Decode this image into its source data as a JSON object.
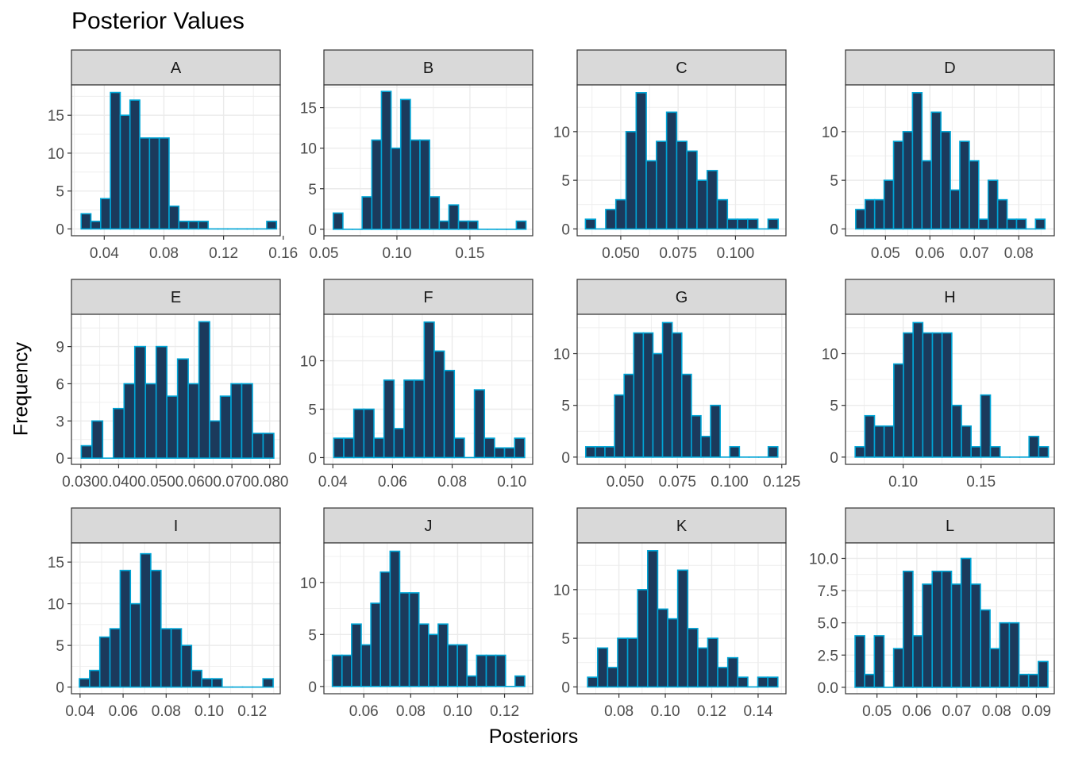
{
  "title": "Posterior Values",
  "xlabel": "Posteriors",
  "ylabel": "Frequency",
  "colors": {
    "bar_fill": "#1b3a5c",
    "bar_stroke": "#00a5d6",
    "strip_fill": "#d9d9d9",
    "panel_border": "#333333",
    "grid": "#ebebeb"
  },
  "chart_data": [
    {
      "type": "bar",
      "panel": "A",
      "xlim": [
        0.018,
        0.158
      ],
      "ylim": [
        -0.9,
        19
      ],
      "xticks": [
        0.04,
        0.08,
        0.12,
        0.16
      ],
      "xtick_labels": [
        "0.04",
        "0.08",
        "0.12",
        "0.16"
      ],
      "yticks": [
        0,
        5,
        10,
        15
      ],
      "ytick_labels": [
        "0",
        "5",
        "10",
        "15"
      ],
      "bins": [
        0.0245,
        0.1555
      ],
      "counts": [
        2,
        1,
        4,
        18,
        15,
        17,
        12,
        12,
        12,
        3,
        1,
        1,
        1,
        0,
        0,
        0,
        0,
        0,
        0,
        1
      ]
    },
    {
      "type": "bar",
      "panel": "B",
      "xlim": [
        0.05,
        0.193
      ],
      "ylim": [
        -0.8,
        17.8
      ],
      "xticks": [
        0.05,
        0.1,
        0.15
      ],
      "xtick_labels": [
        "0.05",
        "0.10",
        "0.15"
      ],
      "yticks": [
        0,
        5,
        10,
        15
      ],
      "ytick_labels": [
        "0",
        "5",
        "10",
        "15"
      ],
      "bins": [
        0.0564,
        0.1884
      ],
      "counts": [
        2,
        0,
        0,
        4,
        11,
        17,
        10,
        16,
        11,
        11,
        4,
        1,
        3,
        1,
        1,
        0,
        0,
        0,
        0,
        1
      ]
    },
    {
      "type": "bar",
      "panel": "C",
      "xlim": [
        0.031,
        0.122
      ],
      "ylim": [
        -0.7,
        14.8
      ],
      "xticks": [
        0.05,
        0.075,
        0.1
      ],
      "xtick_labels": [
        "0.050",
        "0.075",
        "0.100"
      ],
      "yticks": [
        0,
        5,
        10
      ],
      "ytick_labels": [
        "0",
        "5",
        "10"
      ],
      "bins": [
        0.0346,
        0.1186
      ],
      "counts": [
        1,
        0,
        2,
        3,
        10,
        14,
        7,
        9,
        12,
        9,
        8,
        5,
        6,
        3,
        1,
        1,
        1,
        0,
        1
      ]
    },
    {
      "type": "bar",
      "panel": "D",
      "xlim": [
        0.041,
        0.088
      ],
      "ylim": [
        -0.7,
        14.8
      ],
      "xticks": [
        0.05,
        0.06,
        0.07,
        0.08
      ],
      "xtick_labels": [
        "0.05",
        "0.06",
        "0.07",
        "0.08"
      ],
      "yticks": [
        0,
        5,
        10
      ],
      "ytick_labels": [
        "0",
        "5",
        "10"
      ],
      "bins": [
        0.0433,
        0.0859
      ],
      "counts": [
        2,
        3,
        3,
        5,
        9,
        10,
        14,
        7,
        12,
        10,
        4,
        9,
        7,
        1,
        5,
        3,
        1,
        1,
        0,
        1
      ]
    },
    {
      "type": "bar",
      "panel": "E",
      "xlim": [
        0.0275,
        0.0828
      ],
      "ylim": [
        -0.5,
        11.6
      ],
      "xticks": [
        0.03,
        0.04,
        0.05,
        0.06,
        0.07,
        0.08
      ],
      "xtick_labels": [
        "0.030",
        "0.040",
        "0.050",
        "0.060",
        "0.070",
        "0.080"
      ],
      "yticks": [
        0,
        3,
        6,
        9
      ],
      "ytick_labels": [
        "0",
        "3",
        "6",
        "9"
      ],
      "bins": [
        0.0301,
        0.0811
      ],
      "counts": [
        1,
        3,
        0,
        4,
        6,
        9,
        6,
        9,
        5,
        8,
        6,
        11,
        3,
        5,
        6,
        6,
        2,
        2
      ]
    },
    {
      "type": "bar",
      "panel": "F",
      "xlim": [
        0.037,
        0.107
      ],
      "ylim": [
        -0.7,
        14.8
      ],
      "xticks": [
        0.04,
        0.06,
        0.08,
        0.1
      ],
      "xtick_labels": [
        "0.04",
        "0.06",
        "0.08",
        "0.10"
      ],
      "yticks": [
        0,
        5,
        10
      ],
      "ytick_labels": [
        "0",
        "5",
        "10"
      ],
      "bins": [
        0.0403,
        0.1043
      ],
      "counts": [
        2,
        2,
        5,
        5,
        2,
        8,
        3,
        8,
        8,
        14,
        11,
        9,
        2,
        0,
        7,
        2,
        1,
        1,
        2
      ]
    },
    {
      "type": "bar",
      "panel": "G",
      "xlim": [
        0.027,
        0.127
      ],
      "ylim": [
        -0.7,
        13.8
      ],
      "xticks": [
        0.05,
        0.075,
        0.1,
        0.125
      ],
      "xtick_labels": [
        "0.050",
        "0.075",
        "0.100",
        "0.125"
      ],
      "yticks": [
        0,
        5,
        10
      ],
      "ytick_labels": [
        "0",
        "5",
        "10"
      ],
      "bins": [
        0.0311,
        0.1231
      ],
      "counts": [
        1,
        1,
        1,
        6,
        8,
        12,
        12,
        10,
        13,
        12,
        8,
        4,
        2,
        5,
        0,
        1,
        0,
        0,
        0,
        1
      ]
    },
    {
      "type": "bar",
      "panel": "H",
      "xlim": [
        0.063,
        0.197
      ],
      "ylim": [
        -0.7,
        13.8
      ],
      "xticks": [
        0.1,
        0.15
      ],
      "xtick_labels": [
        "0.10",
        "0.15"
      ],
      "yticks": [
        0,
        5,
        10
      ],
      "ytick_labels": [
        "0",
        "5",
        "10"
      ],
      "bins": [
        0.0692,
        0.1932
      ],
      "counts": [
        1,
        4,
        3,
        3,
        9,
        12,
        13,
        12,
        12,
        12,
        5,
        3,
        1,
        6,
        1,
        0,
        0,
        0,
        2,
        1
      ]
    },
    {
      "type": "bar",
      "panel": "I",
      "xlim": [
        0.036,
        0.133
      ],
      "ylim": [
        -0.8,
        17.3
      ],
      "xticks": [
        0.04,
        0.06,
        0.08,
        0.1,
        0.12
      ],
      "xtick_labels": [
        "0.04",
        "0.06",
        "0.08",
        "0.10",
        "0.12"
      ],
      "yticks": [
        0,
        5,
        10,
        15
      ],
      "ytick_labels": [
        "0",
        "5",
        "10",
        "15"
      ],
      "bins": [
        0.0397,
        0.1297
      ],
      "counts": [
        1,
        2,
        6,
        7,
        14,
        10,
        16,
        14,
        7,
        7,
        5,
        2,
        1,
        1,
        0,
        0,
        0,
        0,
        1
      ]
    },
    {
      "type": "bar",
      "panel": "J",
      "xlim": [
        0.043,
        0.132
      ],
      "ylim": [
        -0.7,
        13.8
      ],
      "xticks": [
        0.06,
        0.08,
        0.1,
        0.12
      ],
      "xtick_labels": [
        "0.06",
        "0.08",
        "0.10",
        "0.12"
      ],
      "yticks": [
        0,
        5,
        10
      ],
      "ytick_labels": [
        "0",
        "5",
        "10"
      ],
      "bins": [
        0.0466,
        0.1286
      ],
      "counts": [
        3,
        3,
        6,
        4,
        8,
        11,
        13,
        9,
        9,
        6,
        5,
        6,
        4,
        4,
        1,
        3,
        3,
        3,
        0,
        1
      ]
    },
    {
      "type": "bar",
      "panel": "K",
      "xlim": [
        0.062,
        0.152
      ],
      "ylim": [
        -0.7,
        14.8
      ],
      "xticks": [
        0.08,
        0.1,
        0.12,
        0.14
      ],
      "xtick_labels": [
        "0.08",
        "0.10",
        "0.12",
        "0.14"
      ],
      "yticks": [
        0,
        5,
        10
      ],
      "ytick_labels": [
        "0",
        "5",
        "10"
      ],
      "bins": [
        0.0665,
        0.1485
      ],
      "counts": [
        1,
        4,
        2,
        5,
        5,
        10,
        14,
        8,
        7,
        12,
        6,
        4,
        5,
        2,
        3,
        1,
        0,
        1,
        1
      ]
    },
    {
      "type": "bar",
      "panel": "L",
      "xlim": [
        0.0421,
        0.0945
      ],
      "ylim": [
        -0.5,
        11.2
      ],
      "xticks": [
        0.05,
        0.06,
        0.07,
        0.08,
        0.09
      ],
      "xtick_labels": [
        "0.05",
        "0.06",
        "0.07",
        "0.08",
        "0.09"
      ],
      "yticks": [
        0,
        2.5,
        5,
        7.5,
        10
      ],
      "ytick_labels": [
        "0.0",
        "2.5",
        "5.0",
        "7.5",
        "10.0"
      ],
      "bins": [
        0.0445,
        0.0929
      ],
      "counts": [
        4,
        1,
        4,
        0,
        3,
        9,
        4,
        8,
        9,
        9,
        8,
        10,
        8,
        6,
        3,
        5,
        5,
        1,
        1,
        2
      ]
    }
  ]
}
